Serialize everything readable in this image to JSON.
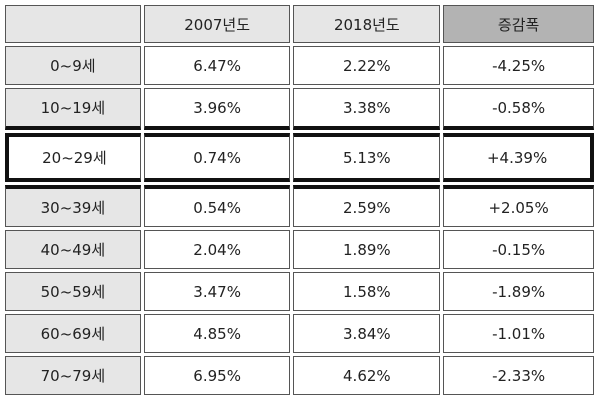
{
  "header": {
    "blank": "",
    "col_2007": "2007년도",
    "col_2018": "2018년도",
    "col_change": "증감폭"
  },
  "rows": [
    {
      "age": "0~9세",
      "y2007": "6.47%",
      "y2018": "2.22%",
      "change": "-4.25%"
    },
    {
      "age": "10~19세",
      "y2007": "3.96%",
      "y2018": "3.38%",
      "change": "-0.58%"
    },
    {
      "age": "20~29세",
      "y2007": "0.74%",
      "y2018": "5.13%",
      "change": "+4.39%"
    },
    {
      "age": "30~39세",
      "y2007": "0.54%",
      "y2018": "2.59%",
      "change": "+2.05%"
    },
    {
      "age": "40~49세",
      "y2007": "2.04%",
      "y2018": "1.89%",
      "change": "-0.15%"
    },
    {
      "age": "50~59세",
      "y2007": "3.47%",
      "y2018": "1.58%",
      "change": "-1.89%"
    },
    {
      "age": "60~69세",
      "y2007": "4.85%",
      "y2018": "3.84%",
      "change": "-1.01%"
    },
    {
      "age": "70~79세",
      "y2007": "6.95%",
      "y2018": "4.62%",
      "change": "-2.33%"
    }
  ]
}
